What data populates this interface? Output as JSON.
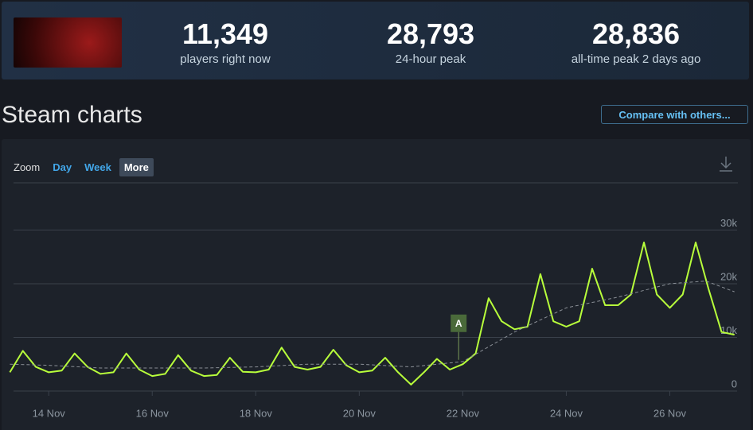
{
  "header": {
    "stats": [
      {
        "value": "11,349",
        "label": "players right now"
      },
      {
        "value": "28,793",
        "label": "24-hour peak"
      },
      {
        "value": "28,836",
        "label": "all-time peak 2 days ago"
      }
    ]
  },
  "section_title": "Steam charts",
  "compare_button": "Compare with others...",
  "zoom": {
    "label": "Zoom",
    "options": [
      "Day",
      "Week",
      "More"
    ]
  },
  "chart_data": {
    "type": "line",
    "x": [
      13.25,
      13.5,
      13.75,
      14,
      14.25,
      14.5,
      14.75,
      15,
      15.25,
      15.5,
      15.75,
      16,
      16.25,
      16.5,
      16.75,
      17,
      17.25,
      17.5,
      17.75,
      18,
      18.25,
      18.5,
      18.75,
      19,
      19.25,
      19.5,
      19.75,
      20,
      20.25,
      20.5,
      20.75,
      21,
      21.25,
      21.5,
      21.75,
      22,
      22.25,
      22.5,
      22.75,
      23,
      23.25,
      23.5,
      23.75,
      24,
      24.25,
      24.5,
      24.75,
      25,
      25.25,
      25.5,
      25.75,
      26,
      26.25,
      26.5,
      26.75,
      27,
      27.25
    ],
    "series": [
      {
        "color": "#b8ff3b",
        "values": [
          3500,
          7500,
          4500,
          3500,
          3800,
          7000,
          4500,
          3200,
          3500,
          7000,
          4000,
          2800,
          3200,
          6700,
          3800,
          2800,
          3000,
          6200,
          3600,
          3500,
          4000,
          8100,
          4500,
          4000,
          4500,
          7700,
          4800,
          3500,
          3800,
          6200,
          3500,
          1200,
          3500,
          6000,
          4000,
          5000,
          7000,
          17300,
          13000,
          11500,
          12000,
          21800,
          13000,
          12000,
          13000,
          22800,
          16000,
          16000,
          18000,
          27700,
          18000,
          15500,
          18000,
          27700,
          19000,
          11000,
          10500
        ]
      },
      {
        "color": "#8a8f96",
        "x": [
          13.25,
          14,
          15,
          16,
          17,
          18,
          19,
          20,
          21,
          22,
          23,
          24,
          25,
          26,
          26.7,
          27.25
        ],
        "values": [
          5000,
          4800,
          4300,
          4300,
          4300,
          4500,
          5000,
          5000,
          4500,
          5500,
          11000,
          15500,
          17500,
          20000,
          20500,
          18500
        ]
      }
    ],
    "annotations": [
      {
        "x": 21.92,
        "y": 11000,
        "label": "A"
      }
    ],
    "xlim": [
      13.32,
      27.3
    ],
    "xticks": [
      {
        "value": 14,
        "label": "14 Nov"
      },
      {
        "value": 16,
        "label": "16 Nov"
      },
      {
        "value": 18,
        "label": "18 Nov"
      },
      {
        "value": 20,
        "label": "20 Nov"
      },
      {
        "value": 22,
        "label": "22 Nov"
      },
      {
        "value": 24,
        "label": "24 Nov"
      },
      {
        "value": 26,
        "label": "26 Nov"
      }
    ],
    "ylim": [
      0,
      38800
    ],
    "yticks": [
      0,
      {
        "value": 10000,
        "label": "10k"
      },
      {
        "value": 20000,
        "label": "20k"
      },
      {
        "value": 30000,
        "label": "30k"
      }
    ],
    "grid": true
  }
}
